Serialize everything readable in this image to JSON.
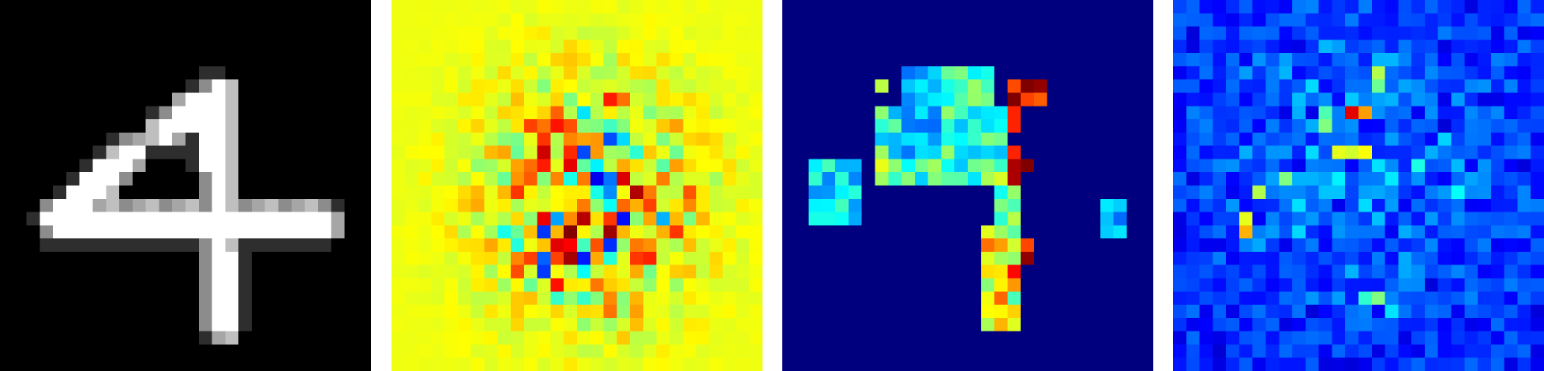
{
  "figure": {
    "panels": [
      {
        "id": "input-digit",
        "colormap": "gray",
        "background": "#000000"
      },
      {
        "id": "heatmap-a",
        "colormap": "jet",
        "background": "#a0ff57"
      },
      {
        "id": "heatmap-b",
        "colormap": "jet",
        "background": "#00007f"
      },
      {
        "id": "heatmap-c",
        "colormap": "jet",
        "background": "#00008f"
      }
    ],
    "grid_size": 28
  }
}
